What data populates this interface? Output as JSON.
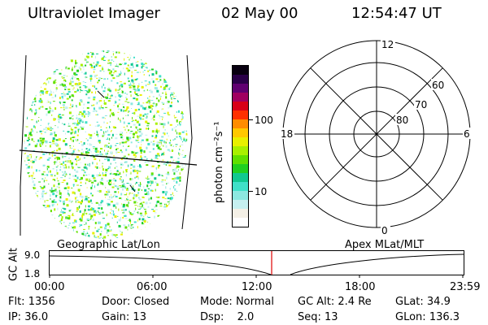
{
  "header": {
    "instrument": "Ultraviolet Imager",
    "date": "02 May 00",
    "time": "12:54:47 UT"
  },
  "colorbar": {
    "units": "photon cm⁻²s⁻¹",
    "ticks": [
      "100",
      "10"
    ],
    "colors": [
      "#ffffff",
      "#f4f0e6",
      "#c6f0f0",
      "#8ce8e0",
      "#40e0c8",
      "#10c890",
      "#20d020",
      "#60e000",
      "#a8f000",
      "#e8f000",
      "#ffc800",
      "#ff8c00",
      "#ff3000",
      "#d80018",
      "#a00060",
      "#600070",
      "#2a0048",
      "#080010"
    ]
  },
  "polar": {
    "mlt_labels": [
      "12",
      "18",
      "6",
      "0"
    ],
    "lat_labels": [
      "60",
      "70",
      "80"
    ]
  },
  "timeline": {
    "left_label": "Geographic Lat/Lon",
    "right_label": "Apex MLat/MLT",
    "axis_label": "GC Alt",
    "y_ticks": [
      "9.0",
      "1.8"
    ],
    "x_ticks": [
      "00:00",
      "06:00",
      "12:00",
      "18:00",
      "23:59"
    ],
    "marker_color": "#e00000"
  },
  "info": {
    "row1": [
      {
        "key": "Flt:",
        "value": "1356"
      },
      {
        "key": "Door:",
        "value": "Closed"
      },
      {
        "key": "Mode:",
        "value": "Normal"
      },
      {
        "key": "GC Alt:",
        "value": "2.4 Re"
      },
      {
        "key": "GLat:",
        "value": "34.9"
      }
    ],
    "row2": [
      {
        "key": "IP:",
        "value": "36.0"
      },
      {
        "key": "Gain:",
        "value": "13"
      },
      {
        "key": "Dsp:",
        "value": "2.0"
      },
      {
        "key": "Seq:",
        "value": "13"
      },
      {
        "key": "GLon:",
        "value": "136.3"
      }
    ]
  }
}
